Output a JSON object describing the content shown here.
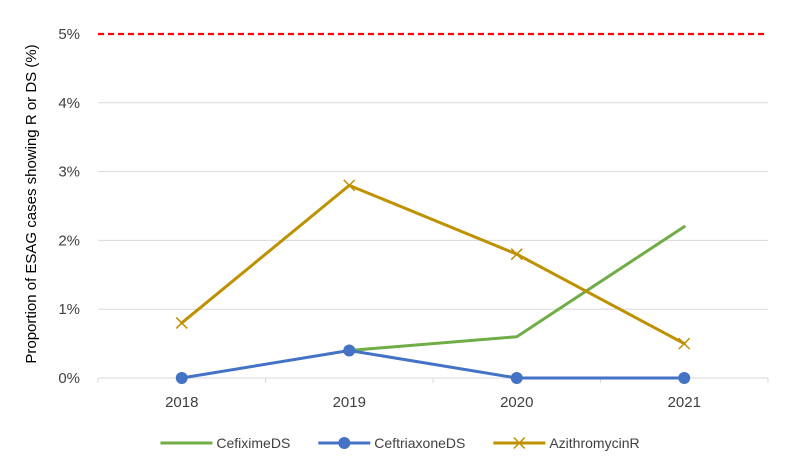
{
  "chart_data": {
    "type": "line",
    "title": "",
    "xlabel": "",
    "ylabel": "Proportion of ESAG cases showing R or DS (%)",
    "categories": [
      "2018",
      "2019",
      "2020",
      "2021"
    ],
    "ylim": [
      0,
      5
    ],
    "yticks": [
      0,
      1,
      2,
      3,
      4,
      5
    ],
    "ytick_labels": [
      "0%",
      "1%",
      "2%",
      "3%",
      "4%",
      "5%"
    ],
    "grid": true,
    "legend_position": "bottom",
    "reference_line": {
      "value": 5,
      "color": "#ff0000",
      "style": "dashed"
    },
    "series": [
      {
        "name": "CefiximeDS",
        "color": "#70ad47",
        "marker": "none",
        "values": [
          null,
          0.4,
          0.6,
          2.2
        ]
      },
      {
        "name": "CeftriaxoneDS",
        "color": "#4472c4",
        "marker": "circle",
        "values": [
          0,
          0.4,
          0,
          0
        ]
      },
      {
        "name": "AzithromycinR",
        "color": "#bf9000",
        "marker": "x",
        "values": [
          0.8,
          2.8,
          1.8,
          0.5
        ]
      }
    ]
  }
}
